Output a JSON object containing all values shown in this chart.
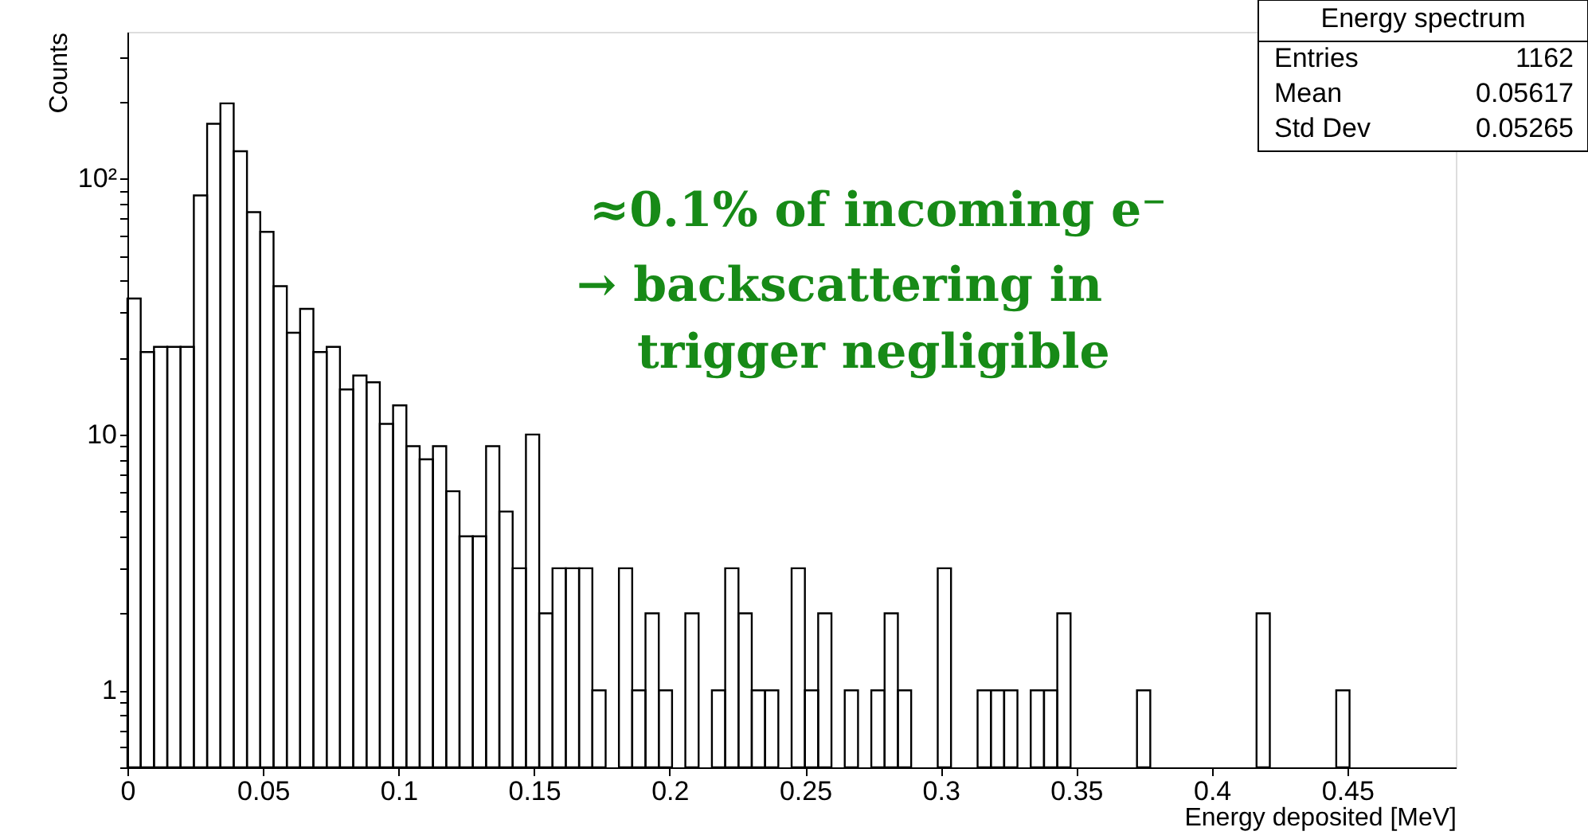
{
  "chart_data": {
    "type": "histogram",
    "title": "Energy spectrum",
    "xlabel": "Energy deposited [MeV]",
    "ylabel": "Counts",
    "bins": [
      0,
      0.0049,
      0.0098,
      0.0147,
      0.0196,
      0.0245,
      0.0294,
      0.0343,
      0.0392,
      0.0441,
      0.049,
      0.0539,
      0.0588,
      0.0637,
      0.0686,
      0.0735,
      0.0784,
      0.0833,
      0.0882,
      0.0931,
      0.098,
      0.1029,
      0.1078,
      0.1127,
      0.1176,
      0.1225,
      0.1274,
      0.1323,
      0.1372,
      0.1421,
      0.147,
      0.1519,
      0.1568,
      0.1617,
      0.1666,
      0.1715,
      0.1764,
      0.1813,
      0.1862,
      0.1911,
      0.196,
      0.2009,
      0.2058,
      0.2107,
      0.2156,
      0.2205,
      0.2254,
      0.2303,
      0.2352,
      0.2401,
      0.245,
      0.2499,
      0.2548,
      0.2597,
      0.2646,
      0.2695,
      0.2744,
      0.2793,
      0.2842,
      0.2891,
      0.294,
      0.2989,
      0.3038,
      0.3087,
      0.3136,
      0.3185,
      0.3234,
      0.3283,
      0.3332,
      0.3381,
      0.343,
      0.3479,
      0.3528,
      0.3577,
      0.3626,
      0.3675,
      0.3724,
      0.3773,
      0.3822,
      0.3871,
      0.392,
      0.3969,
      0.4018,
      0.4067,
      0.4116,
      0.4165,
      0.4214,
      0.4263,
      0.4312,
      0.4361,
      0.441,
      0.4459,
      0.4508,
      0.4557,
      0.4606,
      0.4655,
      0.4704,
      0.4753,
      0.4802,
      0.4851,
      0.49
    ],
    "values": [
      34,
      21,
      22,
      22,
      22,
      86,
      164,
      197,
      128,
      74,
      62,
      38,
      25,
      31,
      21,
      22,
      15,
      17,
      16,
      11,
      13,
      9,
      8,
      9,
      6,
      4,
      4,
      9,
      5,
      3,
      10,
      2,
      3,
      3,
      3,
      1,
      null,
      3,
      1,
      2,
      1,
      null,
      2,
      null,
      1,
      3,
      2,
      1,
      1,
      null,
      3,
      1,
      2,
      null,
      1,
      null,
      1,
      2,
      1,
      null,
      null,
      3,
      null,
      null,
      1,
      1,
      1,
      null,
      1,
      1,
      2,
      null,
      null,
      null,
      null,
      null,
      1,
      null,
      null,
      null,
      null,
      null,
      null,
      null,
      null,
      2,
      null,
      null,
      null,
      null,
      null,
      1,
      null,
      null,
      null,
      null,
      null,
      null,
      null,
      null
    ],
    "color": "#000000",
    "log": "y",
    "grid": false,
    "xlim": [
      0,
      0.49
    ],
    "xticks": [
      0,
      0.05,
      0.1,
      0.15,
      0.2,
      0.25,
      0.3,
      0.35,
      0.4,
      0.45
    ],
    "ylim": [
      0.5,
      375
    ],
    "yticks": [
      {
        "value": 0.5,
        "label": null
      },
      {
        "value": 0.6,
        "label": null
      },
      {
        "value": 0.7,
        "label": null
      },
      {
        "value": 0.8,
        "label": null
      },
      {
        "value": 0.9,
        "label": null
      },
      1,
      {
        "value": 2,
        "label": null
      },
      {
        "value": 3,
        "label": null
      },
      {
        "value": 4,
        "label": null
      },
      {
        "value": 5,
        "label": null
      },
      {
        "value": 6,
        "label": null
      },
      {
        "value": 7,
        "label": null
      },
      {
        "value": 8,
        "label": null
      },
      {
        "value": 9,
        "label": null
      },
      10,
      {
        "value": 20,
        "label": null
      },
      {
        "value": 30,
        "label": null
      },
      {
        "value": 40,
        "label": null
      },
      {
        "value": 50,
        "label": null
      },
      {
        "value": 60,
        "label": null
      },
      {
        "value": 70,
        "label": null
      },
      {
        "value": 80,
        "label": null
      },
      {
        "value": 90,
        "label": null
      },
      {
        "value": 100,
        "label": "10²"
      },
      {
        "value": 200,
        "label": null
      },
      {
        "value": 300,
        "label": null
      }
    ],
    "annotations": [
      "≈0.1% of incoming e⁻",
      "→ backscattering in",
      "trigger negligible",
      "Entries",
      "1162",
      "Mean",
      "0.05617",
      "Std Dev",
      "0.05265"
    ]
  }
}
